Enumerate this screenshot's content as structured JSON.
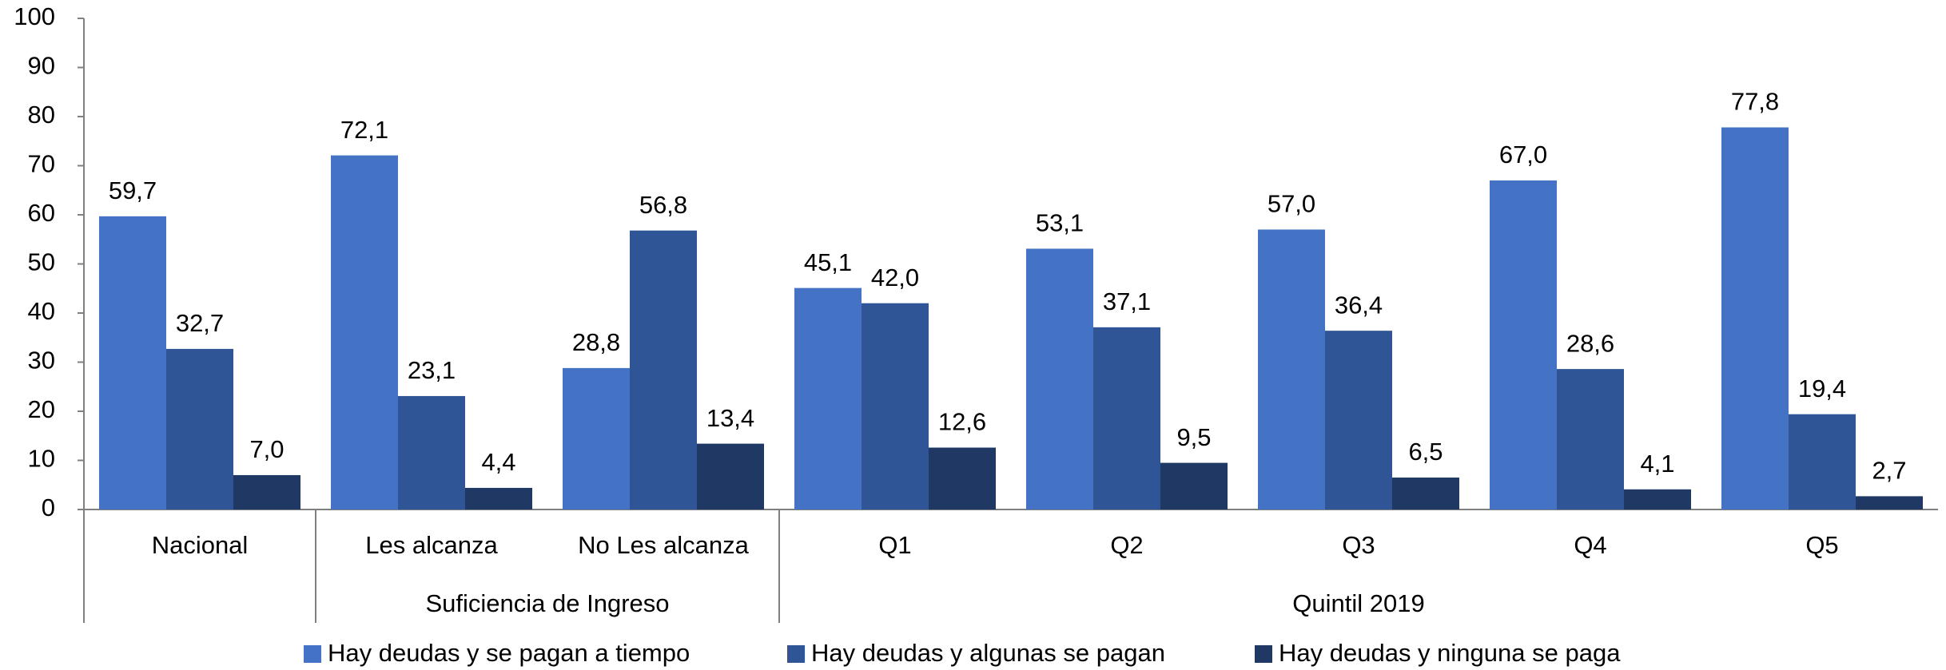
{
  "chart_data": {
    "type": "bar",
    "categories": [
      "Nacional",
      "Les alcanza",
      "No Les alcanza",
      "Q1",
      "Q2",
      "Q3",
      "Q4",
      "Q5"
    ],
    "groups": [
      {
        "name": "Suficiencia de Ingreso",
        "categories": [
          "Les alcanza",
          "No Les alcanza"
        ]
      },
      {
        "name": "Quintil 2019",
        "categories": [
          "Q1",
          "Q2",
          "Q3",
          "Q4",
          "Q5"
        ]
      }
    ],
    "series": [
      {
        "name": "Hay deudas y se pagan a tiempo",
        "color": "#4472c4",
        "values": [
          59.7,
          72.1,
          28.8,
          45.1,
          53.1,
          57.0,
          67.0,
          77.8
        ],
        "value_labels": [
          "59,7",
          "72,1",
          "28,8",
          "45,1",
          "53,1",
          "57,0",
          "67,0",
          "77,8"
        ]
      },
      {
        "name": "Hay deudas y algunas se pagan",
        "color": "#2f5597",
        "values": [
          32.7,
          23.1,
          56.8,
          42.0,
          37.1,
          36.4,
          28.6,
          19.4
        ],
        "value_labels": [
          "32,7",
          "23,1",
          "56,8",
          "42,0",
          "37,1",
          "36,4",
          "28,6",
          "19,4"
        ]
      },
      {
        "name": "Hay deudas y ninguna se paga",
        "color": "#1f3864",
        "values": [
          7.0,
          4.4,
          13.4,
          12.6,
          9.5,
          6.5,
          4.1,
          2.7
        ],
        "value_labels": [
          "7,0",
          "4,4",
          "13,4",
          "12,6",
          "9,5",
          "6,5",
          "4,1",
          "2,7"
        ]
      }
    ],
    "ylim": [
      0,
      100
    ],
    "yticks": [
      0,
      10,
      20,
      30,
      40,
      50,
      60,
      70,
      80,
      90,
      100
    ],
    "grid": false,
    "legend": "bottom"
  }
}
